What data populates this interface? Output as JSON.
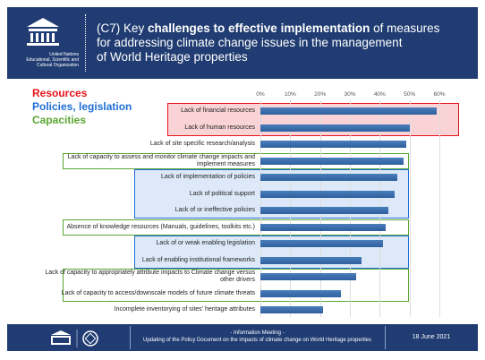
{
  "header": {
    "org_lines": [
      "United Nations",
      "Educational, Scientific and",
      "Cultural Organization"
    ],
    "title_lead": "(C7) Key ",
    "title_bold": "challenges to effective implementation",
    "title_tail": " of measures",
    "title_line2": "for addressing climate change issues in the management",
    "title_line3": "of World Heritage properties"
  },
  "chart_data": {
    "type": "hbar",
    "groups": [
      {
        "name": "Resources",
        "color": "#e8141c"
      },
      {
        "name": "Policies, legislation",
        "color": "#1f6fd6"
      },
      {
        "name": "Capacities",
        "color": "#5aa632"
      }
    ],
    "categories": [
      "Lack of financial resources",
      "Lack of human resources",
      "Lack of site specific research/analysis",
      "Lack of capacity to assess and monitor climate change impacts and implement  measures",
      "Lack of implementation of policies",
      "Lack of political support",
      "Lack of or ineffective policies",
      "Absence of knowledge resources (Manuals, guidelines, toolkits etc.)",
      "Lack of or weak enabling legislation",
      "Lack of enabling institutional frameworks",
      "Lack of capacity to appropriately attribute impacts to Climate change versus other drivers",
      "Lack of capacity to access/downscale models of future climate threats",
      "Incomplete inventorying of sites' heritage attributes"
    ],
    "values": [
      59,
      50,
      49,
      48,
      46,
      45,
      43,
      42,
      41,
      34,
      32,
      27,
      21
    ],
    "color": "#4a7ebb",
    "xlim": [
      0,
      60
    ],
    "xticks": [
      {
        "value": 0,
        "label": "0%"
      },
      {
        "value": 10,
        "label": "10%"
      },
      {
        "value": 20,
        "label": "20%"
      },
      {
        "value": 30,
        "label": "30%"
      },
      {
        "value": 40,
        "label": "40%"
      },
      {
        "value": 50,
        "label": "50%"
      },
      {
        "value": 60,
        "label": "60%"
      }
    ],
    "grid": true
  },
  "footer": {
    "meeting": "- Information Meeting -",
    "subtitle": "Updating of the Policy Document on the impacts of climate change on World Heritage properties",
    "date": "18 June 2021"
  }
}
